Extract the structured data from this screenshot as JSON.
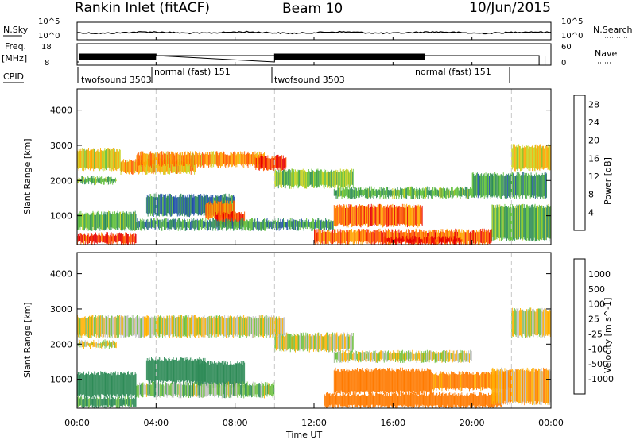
{
  "header": {
    "title": "Rankin Inlet (fitACF)",
    "beam": "Beam 10",
    "date": "10/Jun/2015"
  },
  "noise_panel": {
    "left_label": "N.Sky",
    "right_label": "N.Search",
    "left_ticks": [
      "10^5",
      "10^0"
    ],
    "right_ticks": [
      "10^5",
      "10^0"
    ]
  },
  "freq_panel": {
    "left_label_top": "Freq.",
    "left_label_unit": "[MHz]",
    "left_ticks": [
      "18",
      "8"
    ],
    "right_label": "Nave",
    "right_ticks": [
      "60",
      "0"
    ]
  },
  "cpid": {
    "label": "CPID",
    "modes": [
      {
        "name": "twofsound 3503",
        "start_hour": 0.0
      },
      {
        "name": "normal (fast) 151",
        "start_hour": 4.0
      },
      {
        "name": "twofsound 3503",
        "start_hour": 10.0
      },
      {
        "name": "normal (fast) 151",
        "start_hour": 17.6
      }
    ]
  },
  "time_axis": {
    "label": "Time UT",
    "ticks": [
      "00:00",
      "04:00",
      "08:00",
      "12:00",
      "16:00",
      "20:00",
      "00:00"
    ]
  },
  "colors": {
    "frame": "#000000",
    "gridline": "#c8c8c8",
    "ground_scatter": "#c0c0c0"
  },
  "chart_data": [
    {
      "type": "heatmap",
      "name": "power",
      "ylabel": "Slant Range [km]",
      "yticks": [
        "1000",
        "2000",
        "3000",
        "4000"
      ],
      "ylim": [
        180,
        4600
      ],
      "xlim": [
        0,
        24
      ],
      "colorbar": {
        "label": "Power [dB]",
        "ticks": [
          "4",
          "8",
          "12",
          "16",
          "20",
          "24",
          "28"
        ],
        "range": [
          0,
          30
        ],
        "colors": [
          "#0000ff",
          "#1f4fa8",
          "#2e8b57",
          "#5fbf3a",
          "#c8d21e",
          "#ffa500",
          "#ff5a00",
          "#e60000"
        ]
      },
      "regions": [
        {
          "t0": 0.0,
          "t1": 2.2,
          "r0": 2300,
          "r1": 2900,
          "value": 18
        },
        {
          "t0": 0.0,
          "t1": 2.0,
          "r0": 1900,
          "r1": 2100,
          "value": 12
        },
        {
          "t0": 2.2,
          "t1": 6.0,
          "r0": 2200,
          "r1": 2600,
          "value": 20
        },
        {
          "t0": 3.0,
          "t1": 9.5,
          "r0": 2400,
          "r1": 2800,
          "value": 22
        },
        {
          "t0": 9.0,
          "t1": 10.6,
          "r0": 2300,
          "r1": 2700,
          "value": 26
        },
        {
          "t0": 10.0,
          "t1": 14.0,
          "r0": 1800,
          "r1": 2300,
          "value": 14
        },
        {
          "t0": 13.0,
          "t1": 20.0,
          "r0": 1500,
          "r1": 1800,
          "value": 12
        },
        {
          "t0": 20.0,
          "t1": 23.8,
          "r0": 1500,
          "r1": 2200,
          "value": 10
        },
        {
          "t0": 22.0,
          "t1": 24.0,
          "r0": 2300,
          "r1": 3000,
          "value": 18
        },
        {
          "t0": 3.5,
          "t1": 8.0,
          "r0": 1000,
          "r1": 1600,
          "value": 8
        },
        {
          "t0": 6.5,
          "t1": 8.0,
          "r0": 900,
          "r1": 1400,
          "value": 22
        },
        {
          "t0": 7.0,
          "t1": 8.5,
          "r0": 700,
          "r1": 1100,
          "value": 26
        },
        {
          "t0": 0.0,
          "t1": 3.0,
          "r0": 600,
          "r1": 1100,
          "value": 12
        },
        {
          "t0": 0.0,
          "t1": 3.0,
          "r0": 200,
          "r1": 500,
          "value": 26
        },
        {
          "t0": 3.0,
          "t1": 13.0,
          "r0": 600,
          "r1": 900,
          "value": 10
        },
        {
          "t0": 13.0,
          "t1": 17.5,
          "r0": 700,
          "r1": 1300,
          "value": 24
        },
        {
          "t0": 12.0,
          "t1": 21.0,
          "r0": 200,
          "r1": 600,
          "value": 24
        },
        {
          "t0": 21.0,
          "t1": 24.0,
          "r0": 300,
          "r1": 1300,
          "value": 12
        },
        {
          "t0": 15.5,
          "t1": 19.5,
          "r0": 200,
          "r1": 400,
          "value": 28
        }
      ]
    },
    {
      "type": "heatmap",
      "name": "velocity",
      "ylabel": "Slant Range [km]",
      "yticks": [
        "1000",
        "2000",
        "3000",
        "4000"
      ],
      "ylim": [
        180,
        4600
      ],
      "xlim": [
        0,
        24
      ],
      "colorbar": {
        "label": "Velocity [m s^-1]",
        "ticks": [
          "1000",
          "500",
          "100",
          "25",
          "-25",
          "-100",
          "-500",
          "-1000"
        ],
        "range": [
          -1200,
          1200
        ],
        "colors": [
          "#1f3fa8",
          "#2f6fb8",
          "#2e8b57",
          "#6ec040",
          "#c0c0c0",
          "#ffb000",
          "#ff7a00",
          "#ff3000",
          "#e00000"
        ]
      },
      "regions": [
        {
          "t0": 0.0,
          "t1": 2.2,
          "r0": 2200,
          "r1": 2800,
          "value": 0
        },
        {
          "t0": 2.2,
          "t1": 10.5,
          "r0": 2200,
          "r1": 2800,
          "value": 0
        },
        {
          "t0": 10.0,
          "t1": 14.0,
          "r0": 1800,
          "r1": 2300,
          "value": 0
        },
        {
          "t0": 13.0,
          "t1": 20.0,
          "r0": 1500,
          "r1": 1800,
          "value": 0
        },
        {
          "t0": 22.0,
          "t1": 24.0,
          "r0": 2200,
          "r1": 3000,
          "value": 0
        },
        {
          "t0": 0.0,
          "t1": 2.0,
          "r0": 1900,
          "r1": 2100,
          "value": 0
        },
        {
          "t0": 3.5,
          "t1": 6.5,
          "r0": 900,
          "r1": 1600,
          "value": 300
        },
        {
          "t0": 6.0,
          "t1": 8.5,
          "r0": 800,
          "r1": 1500,
          "value": 400
        },
        {
          "t0": 0.0,
          "t1": 3.0,
          "r0": 500,
          "r1": 1200,
          "value": 250
        },
        {
          "t0": 0.0,
          "t1": 3.0,
          "r0": 200,
          "r1": 500,
          "value": 150
        },
        {
          "t0": 3.0,
          "t1": 10.0,
          "r0": 500,
          "r1": 900,
          "value": 60
        },
        {
          "t0": 13.0,
          "t1": 18.0,
          "r0": 600,
          "r1": 1300,
          "value": -400
        },
        {
          "t0": 12.5,
          "t1": 21.5,
          "r0": 200,
          "r1": 600,
          "value": -250
        },
        {
          "t0": 18.0,
          "t1": 22.0,
          "r0": 700,
          "r1": 1200,
          "value": -150
        },
        {
          "t0": 21.0,
          "t1": 24.0,
          "r0": 300,
          "r1": 1300,
          "value": -80
        }
      ]
    }
  ]
}
